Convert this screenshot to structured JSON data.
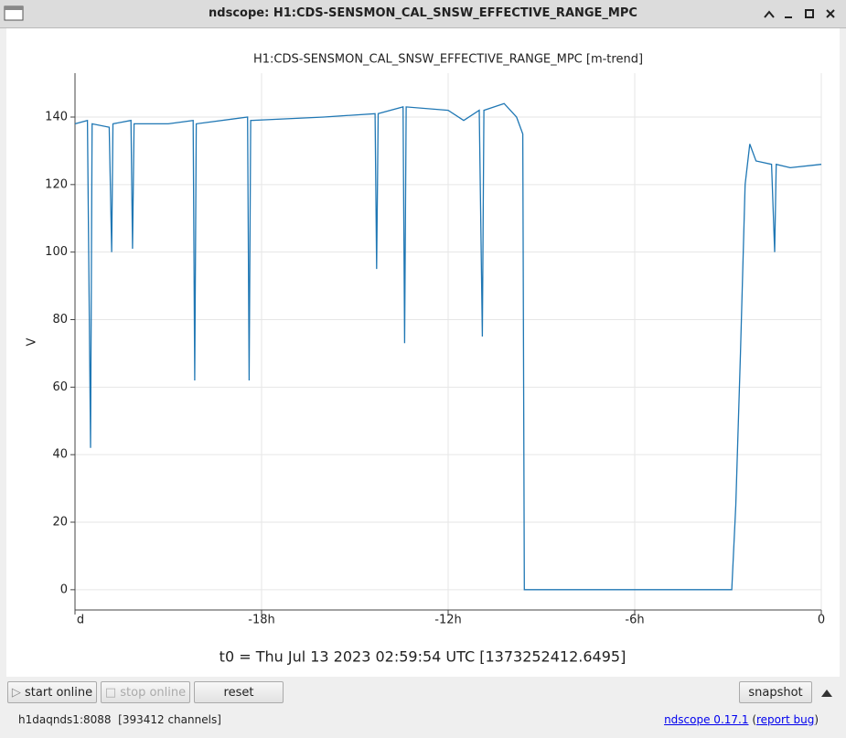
{
  "window_title": "ndscope: H1:CDS-SENSMON_CAL_SNSW_EFFECTIVE_RANGE_MPC",
  "chart_data": {
    "type": "line",
    "title": "H1:CDS-SENSMON_CAL_SNSW_EFFECTIVE_RANGE_MPC [m-trend]",
    "y_label": "V",
    "x": [
      -24,
      -23.6,
      -23.5,
      -23.45,
      -22.9,
      -22.82,
      -22.78,
      -22.2,
      -22.15,
      -22.1,
      -21,
      -20.2,
      -20.15,
      -20.1,
      -18.45,
      -18.4,
      -18.35,
      -16,
      -14.35,
      -14.3,
      -14.25,
      -13.45,
      -13.4,
      -13.35,
      -12,
      -11.5,
      -11,
      -10.9,
      -10.85,
      -10.2,
      -9.8,
      -9.6,
      -9.55,
      -6,
      -2.88,
      -2.75,
      -2.6,
      -2.45,
      -2.3,
      -2.1,
      -1.6,
      -1.5,
      -1.45,
      -1,
      0
    ],
    "series": [
      {
        "name": "H1:CDS-SENSMON_CAL_SNSW_EFFECTIVE_RANGE_MPC",
        "color": "#1f77b4",
        "values": [
          138,
          139,
          42,
          138,
          137,
          100,
          138,
          139,
          101,
          138,
          138,
          139,
          62,
          138,
          140,
          62,
          139,
          140,
          141,
          95,
          141,
          143,
          73,
          143,
          142,
          139,
          142,
          75,
          142,
          144,
          140,
          135,
          0,
          0,
          0,
          25,
          70,
          120,
          132,
          127,
          126,
          100,
          126,
          125,
          126
        ]
      }
    ],
    "xlim": [
      -24,
      0
    ],
    "xticks": [
      {
        "value": -24,
        "label": "d"
      },
      {
        "value": -18,
        "label": "-18h"
      },
      {
        "value": -12,
        "label": "-12h"
      },
      {
        "value": -6,
        "label": "-6h"
      },
      0
    ],
    "ylim": [
      -6,
      153
    ],
    "yticks": [
      0,
      20,
      40,
      60,
      80,
      100,
      120,
      140
    ],
    "grid": true
  },
  "t0": "t0 = Thu Jul 13 2023 02:59:54 UTC [1373252412.6495]",
  "buttons": {
    "start": "start online",
    "stop": "stop online",
    "reset": "reset",
    "snapshot": "snapshot"
  },
  "status": "h1daqnds1:8088  [393412 channels]",
  "links": {
    "version": "ndscope 0.17.1",
    "open": "(",
    "report": "report bug",
    "close": ")"
  }
}
